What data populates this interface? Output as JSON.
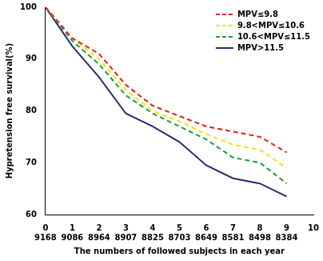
{
  "chart_data": {
    "type": "line",
    "x_label": "The numbers of followed subjects in each year",
    "y_label": "Hypretension free survival(%)",
    "x": [
      0,
      1,
      2,
      3,
      4,
      5,
      6,
      7,
      8,
      9
    ],
    "followed_subjects": [
      9168,
      9086,
      8964,
      8907,
      8825,
      8703,
      8649,
      8581,
      8498,
      8384
    ],
    "series": [
      {
        "name": "MPV≤9.8",
        "color": "#e0201b",
        "line_style": "dashed",
        "values": [
          100,
          94,
          91,
          85,
          81,
          79,
          77,
          76,
          75,
          72
        ]
      },
      {
        "name": "9.8<MPV≤10.6",
        "color": "#f2e21a",
        "line_style": "dashed",
        "values": [
          100,
          94,
          90,
          84,
          80,
          78,
          75.5,
          73.5,
          72.5,
          69
        ]
      },
      {
        "name": "10.6<MPV≤11.5",
        "color": "#1e9e3a",
        "line_style": "dashed",
        "values": [
          100,
          93.5,
          89,
          83,
          79.5,
          77,
          74.5,
          71,
          70,
          66
        ]
      },
      {
        "name": "MPV>11.5",
        "color": "#2b2b6e",
        "line_style": "solid",
        "values": [
          100,
          92.5,
          86.5,
          79.5,
          77,
          74,
          69.5,
          67,
          66,
          63.5
        ]
      }
    ],
    "xlim": [
      0,
      10
    ],
    "xticks": [
      0,
      1,
      2,
      3,
      4,
      5,
      6,
      7,
      8,
      9,
      10
    ],
    "ylim": [
      60,
      100
    ],
    "yticks": [
      60,
      70,
      80,
      90,
      100
    ],
    "grid": false,
    "legend": "upper right"
  }
}
